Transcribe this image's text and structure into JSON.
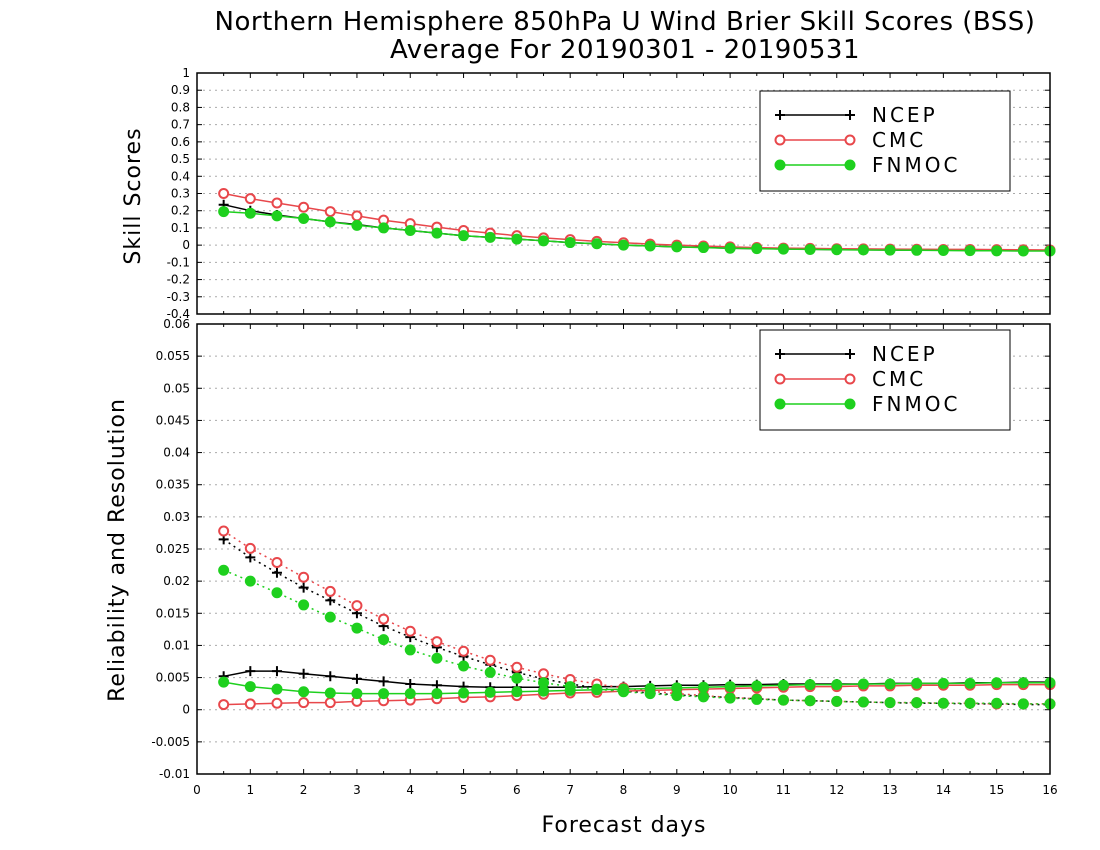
{
  "title_line1": "Northern Hemisphere 850hPa U Wind Brier Skill Scores (BSS)",
  "title_line2": "Average For 20190301 - 20190531",
  "colors": {
    "NCEP": "#000000",
    "CMC": "#e8474b",
    "FNMOC": "#1ed01e"
  },
  "chart_data": [
    {
      "type": "line",
      "panel": "top",
      "ylabel": "Skill Scores",
      "xlabel": "",
      "ylim": [
        -0.4,
        1
      ],
      "xlim": [
        0,
        16
      ],
      "yticks": [
        "-0.4",
        "-0.3",
        "-0.2",
        "-0.1",
        "0",
        "0.1",
        "0.2",
        "0.3",
        "0.4",
        "0.5",
        "0.6",
        "0.7",
        "0.8",
        "0.9",
        "1"
      ],
      "grid": true,
      "legend": {
        "position": "top-right",
        "entries": [
          "NCEP",
          "CMC",
          "FNMOC"
        ]
      },
      "x": [
        0.5,
        1,
        1.5,
        2,
        2.5,
        3,
        3.5,
        4,
        4.5,
        5,
        5.5,
        6,
        6.5,
        7,
        7.5,
        8,
        8.5,
        9,
        9.5,
        10,
        10.5,
        11,
        11.5,
        12,
        12.5,
        13,
        13.5,
        14,
        14.5,
        15,
        15.5,
        16
      ],
      "series": [
        {
          "name": "NCEP",
          "marker": "plus",
          "line": "solid",
          "values": [
            0.235,
            0.2,
            0.175,
            0.155,
            0.135,
            0.12,
            0.1,
            0.085,
            0.07,
            0.055,
            0.045,
            0.035,
            0.025,
            0.015,
            0.008,
            0.0,
            -0.005,
            -0.01,
            -0.013,
            -0.018,
            -0.02,
            -0.022,
            -0.024,
            -0.026,
            -0.027,
            -0.028,
            -0.029,
            -0.03,
            -0.03,
            -0.031,
            -0.032,
            -0.032
          ]
        },
        {
          "name": "CMC",
          "marker": "open-circle",
          "line": "solid",
          "values": [
            0.3,
            0.27,
            0.245,
            0.22,
            0.195,
            0.17,
            0.145,
            0.125,
            0.105,
            0.085,
            0.07,
            0.055,
            0.042,
            0.032,
            0.022,
            0.014,
            0.006,
            0.0,
            -0.005,
            -0.01,
            -0.014,
            -0.017,
            -0.019,
            -0.021,
            -0.022,
            -0.023,
            -0.024,
            -0.025,
            -0.025,
            -0.026,
            -0.027,
            -0.028
          ]
        },
        {
          "name": "FNMOC",
          "marker": "filled-circle",
          "line": "solid",
          "values": [
            0.195,
            0.185,
            0.17,
            0.155,
            0.135,
            0.115,
            0.1,
            0.085,
            0.07,
            0.055,
            0.045,
            0.035,
            0.025,
            0.015,
            0.008,
            0.0,
            -0.005,
            -0.01,
            -0.014,
            -0.018,
            -0.02,
            -0.023,
            -0.025,
            -0.027,
            -0.028,
            -0.029,
            -0.03,
            -0.031,
            -0.032,
            -0.033,
            -0.034,
            -0.034
          ]
        }
      ]
    },
    {
      "type": "line",
      "panel": "bottom",
      "ylabel": "Reliability and Resolution",
      "xlabel": "Forecast days",
      "ylim": [
        -0.01,
        0.06
      ],
      "xlim": [
        0,
        16
      ],
      "yticks": [
        "-0.01",
        "-0.005",
        "0",
        "0.005",
        "0.01",
        "0.015",
        "0.02",
        "0.025",
        "0.03",
        "0.035",
        "0.04",
        "0.045",
        "0.05",
        "0.055",
        "0.06"
      ],
      "xticks": [
        "0",
        "1",
        "2",
        "3",
        "4",
        "5",
        "6",
        "7",
        "8",
        "9",
        "10",
        "11",
        "12",
        "13",
        "14",
        "15",
        "16"
      ],
      "grid": true,
      "legend": {
        "position": "top-right",
        "entries": [
          "NCEP",
          "CMC",
          "FNMOC"
        ]
      },
      "x": [
        0.5,
        1,
        1.5,
        2,
        2.5,
        3,
        3.5,
        4,
        4.5,
        5,
        5.5,
        6,
        6.5,
        7,
        7.5,
        8,
        8.5,
        9,
        9.5,
        10,
        10.5,
        11,
        11.5,
        12,
        12.5,
        13,
        13.5,
        14,
        14.5,
        15,
        15.5,
        16
      ],
      "series": [
        {
          "name": "NCEP",
          "marker": "plus",
          "line": "solid",
          "values": [
            0.0052,
            0.006,
            0.006,
            0.0056,
            0.0052,
            0.0048,
            0.0044,
            0.004,
            0.0038,
            0.0036,
            0.0035,
            0.0035,
            0.0035,
            0.0035,
            0.0036,
            0.0036,
            0.0037,
            0.0038,
            0.0038,
            0.0039,
            0.0039,
            0.004,
            0.004,
            0.004,
            0.004,
            0.0041,
            0.0041,
            0.0041,
            0.0042,
            0.0042,
            0.0043,
            0.0043
          ]
        },
        {
          "name": "NCEP",
          "marker": "plus",
          "line": "dotted",
          "values": [
            0.0265,
            0.0237,
            0.0213,
            0.019,
            0.017,
            0.015,
            0.013,
            0.0113,
            0.0097,
            0.0083,
            0.007,
            0.0058,
            0.0048,
            0.004,
            0.0034,
            0.0029,
            0.0026,
            0.0023,
            0.0021,
            0.0019,
            0.0017,
            0.0015,
            0.0014,
            0.0013,
            0.0012,
            0.0011,
            0.001,
            0.001,
            0.0009,
            0.0009,
            0.0008,
            0.0008
          ]
        },
        {
          "name": "CMC",
          "marker": "open-circle",
          "line": "solid",
          "values": [
            0.0008,
            0.0009,
            0.001,
            0.0011,
            0.0011,
            0.0013,
            0.0014,
            0.0015,
            0.0017,
            0.0019,
            0.002,
            0.0022,
            0.0024,
            0.0026,
            0.0027,
            0.0029,
            0.003,
            0.0031,
            0.0032,
            0.0033,
            0.0034,
            0.0035,
            0.0036,
            0.0036,
            0.0037,
            0.0037,
            0.0038,
            0.0038,
            0.0038,
            0.0039,
            0.0039,
            0.0039
          ]
        },
        {
          "name": "CMC",
          "marker": "open-circle",
          "line": "dotted",
          "values": [
            0.0278,
            0.0251,
            0.0229,
            0.0206,
            0.0184,
            0.0162,
            0.0141,
            0.0122,
            0.0106,
            0.0091,
            0.0077,
            0.0066,
            0.0056,
            0.0047,
            0.004,
            0.0034,
            0.0029,
            0.0025,
            0.0022,
            0.0019,
            0.0017,
            0.0015,
            0.0014,
            0.0013,
            0.0012,
            0.0011,
            0.0011,
            0.001,
            0.001,
            0.0009,
            0.0009,
            0.0009
          ]
        },
        {
          "name": "FNMOC",
          "marker": "filled-circle",
          "line": "solid",
          "values": [
            0.0043,
            0.0036,
            0.0032,
            0.0028,
            0.0026,
            0.0025,
            0.0025,
            0.0025,
            0.0025,
            0.0026,
            0.0027,
            0.0028,
            0.0029,
            0.003,
            0.0031,
            0.0032,
            0.0033,
            0.0034,
            0.0035,
            0.0036,
            0.0037,
            0.0038,
            0.0039,
            0.0039,
            0.004,
            0.004,
            0.0041,
            0.0041,
            0.0041,
            0.0042,
            0.0042,
            0.0042
          ]
        },
        {
          "name": "FNMOC",
          "marker": "filled-circle",
          "line": "dotted",
          "values": [
            0.0217,
            0.02,
            0.0182,
            0.0163,
            0.0144,
            0.0127,
            0.0109,
            0.0093,
            0.008,
            0.0068,
            0.0058,
            0.0049,
            0.0042,
            0.0036,
            0.0032,
            0.0028,
            0.0025,
            0.0022,
            0.002,
            0.0018,
            0.0016,
            0.0015,
            0.0014,
            0.0013,
            0.0012,
            0.0011,
            0.0011,
            0.001,
            0.001,
            0.001,
            0.0009,
            0.0009
          ]
        }
      ]
    }
  ]
}
